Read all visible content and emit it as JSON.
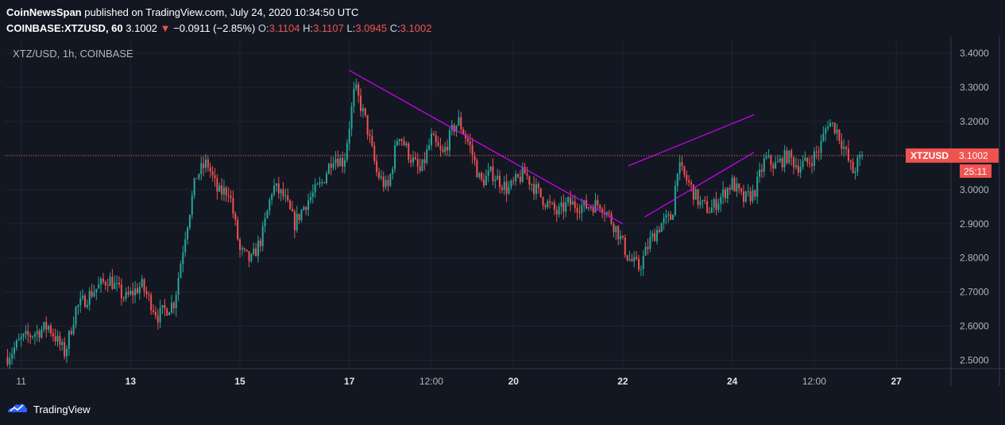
{
  "header": {
    "publisher": "CoinNewsSpan",
    "published_text": "published on TradingView.com, July 24, 2020 10:34:50 UTC",
    "symbol": "COINBASE:XTZUSD, 60",
    "last": "3.1002",
    "change_arrow": "▼",
    "change": "−0.0911 (−2.85%)",
    "o_label": "O:",
    "o": "3.1104",
    "h_label": "H:",
    "h": "3.1107",
    "l_label": "L:",
    "l": "3.0945",
    "c_label": "C:",
    "c": "3.1002"
  },
  "footer": {
    "brand": "TradingView",
    "logo_icon": "tradingview-logo-icon"
  },
  "colors": {
    "background": "#131722",
    "up": "#26a69a",
    "down": "#ef5350",
    "trendline": "#d500f9",
    "grid": "#1f2430",
    "axis_text": "#b2b5be"
  },
  "chart_data": {
    "type": "candlestick",
    "title": "XTZ/USD, 1h, COINBASE",
    "ylim": [
      2.48,
      3.44
    ],
    "y_ticks": [
      "3.4000",
      "3.3000",
      "3.2000",
      "3.1000",
      "3.0000",
      "2.9000",
      "2.8000",
      "2.7000",
      "2.6000",
      "2.5000"
    ],
    "x_ticks": [
      "11",
      "13",
      "15",
      "17",
      "12:00",
      "20",
      "22",
      "24",
      "12:00",
      "27"
    ],
    "bold_x_ticks": [
      "13",
      "15",
      "17",
      "20",
      "22",
      "24",
      "27"
    ],
    "xlim_days": [
      10.7,
      28.0
    ],
    "x_tick_days": [
      11,
      13,
      15,
      17,
      18.5,
      20,
      22,
      24,
      25.5,
      27
    ],
    "last_price": {
      "symbol": "XTZUSD",
      "value": "3.1002",
      "countdown": "25:11",
      "price": 3.1002
    },
    "path": [
      [
        10.75,
        2.51
      ],
      [
        11.0,
        2.56
      ],
      [
        11.5,
        2.6
      ],
      [
        11.8,
        2.52
      ],
      [
        12.0,
        2.65
      ],
      [
        12.3,
        2.7
      ],
      [
        12.6,
        2.74
      ],
      [
        12.9,
        2.68
      ],
      [
        13.2,
        2.72
      ],
      [
        13.5,
        2.63
      ],
      [
        13.8,
        2.67
      ],
      [
        14.0,
        2.87
      ],
      [
        14.2,
        3.04
      ],
      [
        14.4,
        3.08
      ],
      [
        14.6,
        2.99
      ],
      [
        14.8,
        3.0
      ],
      [
        15.0,
        2.82
      ],
      [
        15.2,
        2.79
      ],
      [
        15.4,
        2.86
      ],
      [
        15.6,
        3.01
      ],
      [
        15.8,
        2.98
      ],
      [
        16.0,
        2.9
      ],
      [
        16.2,
        2.96
      ],
      [
        16.5,
        3.02
      ],
      [
        16.7,
        3.1
      ],
      [
        16.9,
        3.08
      ],
      [
        17.1,
        3.3
      ],
      [
        17.3,
        3.2
      ],
      [
        17.5,
        3.05
      ],
      [
        17.7,
        3.0
      ],
      [
        17.9,
        3.17
      ],
      [
        18.1,
        3.1
      ],
      [
        18.3,
        3.05
      ],
      [
        18.5,
        3.15
      ],
      [
        18.7,
        3.1
      ],
      [
        18.9,
        3.18
      ],
      [
        19.0,
        3.2
      ],
      [
        19.2,
        3.13
      ],
      [
        19.4,
        3.02
      ],
      [
        19.6,
        3.05
      ],
      [
        19.9,
        3.0
      ],
      [
        20.2,
        3.05
      ],
      [
        20.5,
        2.98
      ],
      [
        20.8,
        2.93
      ],
      [
        21.0,
        2.96
      ],
      [
        21.3,
        2.95
      ],
      [
        21.6,
        2.96
      ],
      [
        21.9,
        2.88
      ],
      [
        22.1,
        2.8
      ],
      [
        22.3,
        2.77
      ],
      [
        22.5,
        2.85
      ],
      [
        22.7,
        2.9
      ],
      [
        22.9,
        2.92
      ],
      [
        23.0,
        3.07
      ],
      [
        23.2,
        3.02
      ],
      [
        23.4,
        2.96
      ],
      [
        23.6,
        2.94
      ],
      [
        23.8,
        2.98
      ],
      [
        24.0,
        3.02
      ],
      [
        24.2,
        2.97
      ],
      [
        24.4,
        2.99
      ],
      [
        24.6,
        3.09
      ],
      [
        24.8,
        3.07
      ],
      [
        25.0,
        3.1
      ],
      [
        25.2,
        3.07
      ],
      [
        25.4,
        3.08
      ],
      [
        25.6,
        3.12
      ],
      [
        25.75,
        3.2
      ],
      [
        25.9,
        3.18
      ],
      [
        26.05,
        3.12
      ],
      [
        26.2,
        3.05
      ],
      [
        26.3,
        3.08
      ],
      [
        26.4,
        3.1
      ]
    ],
    "trendlines": [
      {
        "from": [
          17.0,
          3.35
        ],
        "to": [
          22.0,
          2.9
        ]
      },
      {
        "from": [
          22.1,
          3.07
        ],
        "to": [
          24.4,
          3.22
        ]
      },
      {
        "from": [
          22.4,
          2.92
        ],
        "to": [
          24.4,
          3.11
        ]
      }
    ]
  }
}
